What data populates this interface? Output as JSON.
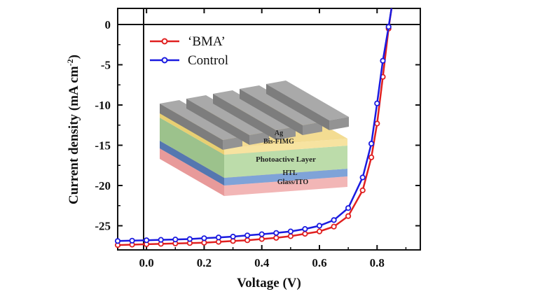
{
  "chart_data": {
    "type": "line",
    "xlabel": "Voltage (V)",
    "ylabel_main": "Current density (mA cm",
    "ylabel_sup": "-2",
    "ylabel_close": ")",
    "xlim": [
      -0.1,
      0.95
    ],
    "ylim": [
      -28,
      2
    ],
    "xticks": [
      "0.0",
      "0.2",
      "0.4",
      "0.6",
      "0.8"
    ],
    "yticks": [
      "0",
      "-5",
      "-10",
      "-15",
      "-20",
      "-25"
    ],
    "legend_position": "top-left",
    "series": [
      {
        "name": "‘BMA’",
        "color": "#e02020",
        "x": [
          -0.1,
          -0.05,
          0.0,
          0.05,
          0.1,
          0.15,
          0.2,
          0.25,
          0.3,
          0.35,
          0.4,
          0.45,
          0.5,
          0.55,
          0.6,
          0.65,
          0.7,
          0.75,
          0.78,
          0.8,
          0.82,
          0.84,
          0.85
        ],
        "y": [
          -27.4,
          -27.35,
          -27.3,
          -27.25,
          -27.2,
          -27.15,
          -27.1,
          -27.0,
          -26.9,
          -26.8,
          -26.65,
          -26.5,
          -26.3,
          -26.0,
          -25.7,
          -25.1,
          -23.8,
          -20.6,
          -16.5,
          -12.3,
          -6.5,
          -0.5,
          2.0
        ]
      },
      {
        "name": "Control",
        "color": "#1a1ae0",
        "x": [
          -0.1,
          -0.05,
          0.0,
          0.05,
          0.1,
          0.15,
          0.2,
          0.25,
          0.3,
          0.35,
          0.4,
          0.45,
          0.5,
          0.55,
          0.6,
          0.65,
          0.7,
          0.75,
          0.78,
          0.8,
          0.82,
          0.84,
          0.85
        ],
        "y": [
          -26.9,
          -26.85,
          -26.8,
          -26.75,
          -26.7,
          -26.65,
          -26.55,
          -26.45,
          -26.35,
          -26.2,
          -26.05,
          -25.9,
          -25.7,
          -25.4,
          -25.0,
          -24.3,
          -22.8,
          -19.0,
          -14.8,
          -9.8,
          -4.5,
          -0.3,
          2.0
        ]
      }
    ],
    "inset": {
      "layers": [
        "Ag",
        "Bis-FIMG",
        "Photoactive Layer",
        "HTL",
        "Glass/ITO"
      ]
    }
  }
}
